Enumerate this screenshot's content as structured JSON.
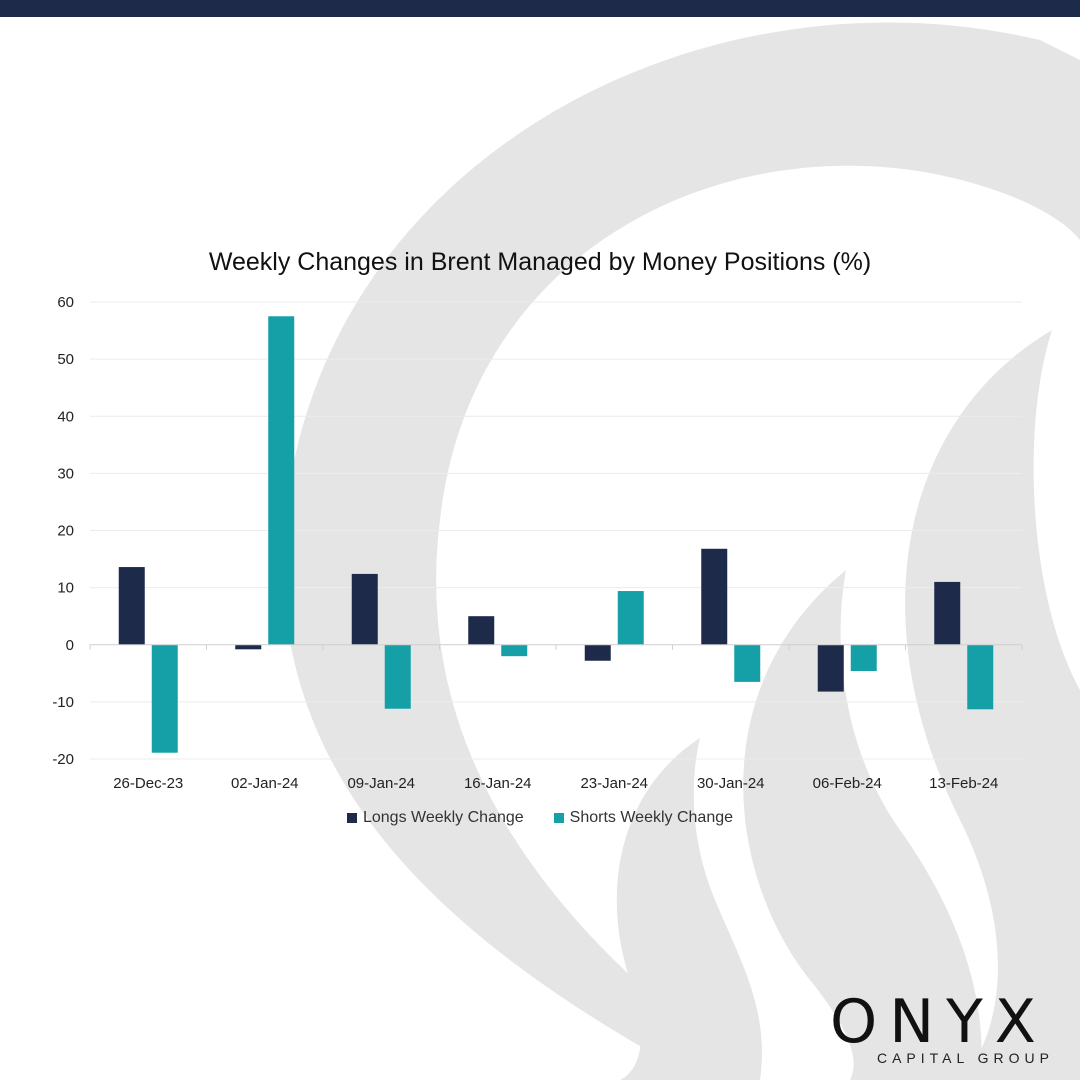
{
  "colors": {
    "top_bar": "#1d2a4a",
    "longs": "#1d2a4a",
    "shorts": "#14a0a6",
    "background_shape": "#e5e5e5",
    "grid": "#ececec"
  },
  "logo": {
    "word": "ONYX",
    "subtitle": "CAPITAL GROUP"
  },
  "chart_data": {
    "type": "bar",
    "title": "Weekly Changes in Brent Managed by Money Positions (%)",
    "categories": [
      "26-Dec-23",
      "02-Jan-24",
      "09-Jan-24",
      "16-Jan-24",
      "23-Jan-24",
      "30-Jan-24",
      "06-Feb-24",
      "13-Feb-24"
    ],
    "series": [
      {
        "name": "Longs Weekly Change",
        "values": [
          13.6,
          -0.8,
          12.4,
          5.0,
          -2.8,
          16.8,
          -8.2,
          11.0
        ]
      },
      {
        "name": "Shorts Weekly Change",
        "values": [
          -18.9,
          57.5,
          -11.2,
          -2.0,
          9.4,
          -6.5,
          -4.6,
          -11.3
        ]
      }
    ],
    "yticks": [
      60,
      50,
      40,
      30,
      20,
      10,
      0,
      -10,
      -20
    ],
    "ylim": [
      -20,
      60
    ],
    "xlabel": "",
    "ylabel": "",
    "grid": true,
    "legend": "bottom"
  }
}
